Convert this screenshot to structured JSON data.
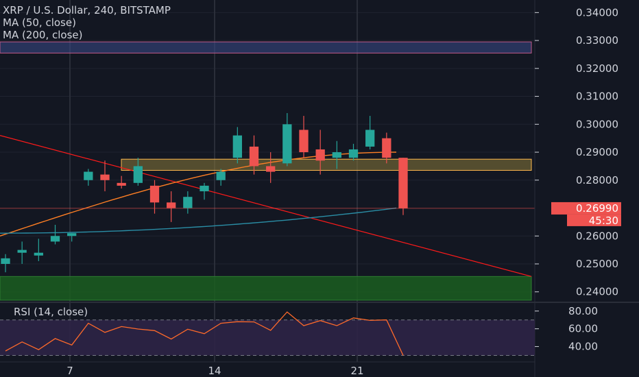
{
  "header": {
    "symbol_line": "XRP / U.S. Dollar, 240, BITSTAMP",
    "ma50_label": "MA (50, close)",
    "ma200_label": "MA (200, close)"
  },
  "rsi": {
    "label": "RSI (14, close)"
  },
  "price_badge": {
    "value": "0.26990",
    "timer": "45:30"
  },
  "colors": {
    "background": "#131722",
    "up": "#26a69a",
    "down": "#ef5350",
    "ma50": "#ff7f24",
    "ma200": "#2a8ea6",
    "trendline": "#ff1a1a",
    "resistance_zone": "#8a7a3a",
    "support_zone": "#1b5e20",
    "rsi_line": "#ff6a2a",
    "rsi_band": "#2e2446",
    "text": "#d1d4dc"
  },
  "chart_data": [
    {
      "type": "candlestick",
      "title": "XRP / U.S. Dollar, 240, BITSTAMP",
      "x_ticks": [
        "7",
        "14",
        "21"
      ],
      "y_ticks": [
        "0.24000",
        "0.25000",
        "0.26000",
        "0.28000",
        "0.29000",
        "0.30000",
        "0.31000",
        "0.32000",
        "0.33000",
        "0.34000"
      ],
      "ylim": [
        0.2365,
        0.3445
      ],
      "grid": true,
      "ohlc_approx": [
        [
          0.25,
          0.2535,
          0.247,
          0.252
        ],
        [
          0.254,
          0.258,
          0.25,
          0.255
        ],
        [
          0.253,
          0.259,
          0.251,
          0.254
        ],
        [
          0.258,
          0.264,
          0.257,
          0.26
        ],
        [
          0.26,
          0.261,
          0.258,
          0.261
        ],
        [
          0.28,
          0.284,
          0.278,
          0.283
        ],
        [
          0.282,
          0.287,
          0.276,
          0.28
        ],
        [
          0.279,
          0.2815,
          0.277,
          0.278
        ],
        [
          0.279,
          0.288,
          0.278,
          0.285
        ],
        [
          0.278,
          0.28,
          0.268,
          0.272
        ],
        [
          0.272,
          0.276,
          0.265,
          0.27
        ],
        [
          0.27,
          0.276,
          0.268,
          0.274
        ],
        [
          0.276,
          0.279,
          0.273,
          0.278
        ],
        [
          0.28,
          0.284,
          0.278,
          0.283
        ],
        [
          0.288,
          0.299,
          0.286,
          0.296
        ],
        [
          0.292,
          0.296,
          0.282,
          0.285
        ],
        [
          0.285,
          0.29,
          0.279,
          0.283
        ],
        [
          0.286,
          0.304,
          0.285,
          0.3
        ],
        [
          0.298,
          0.303,
          0.288,
          0.29
        ],
        [
          0.291,
          0.298,
          0.282,
          0.287
        ],
        [
          0.288,
          0.294,
          0.284,
          0.29
        ],
        [
          0.288,
          0.293,
          0.287,
          0.291
        ],
        [
          0.292,
          0.303,
          0.291,
          0.298
        ],
        [
          0.295,
          0.297,
          0.286,
          0.288
        ],
        [
          0.288,
          0.288,
          0.2675,
          0.2699
        ]
      ],
      "lines": [
        {
          "name": "MA (50, close)",
          "from": 0.26,
          "to": 0.29
        },
        {
          "name": "MA (200, close)",
          "from": 0.261,
          "to": 0.27
        }
      ],
      "trendline": {
        "from": 0.296,
        "to": 0.2455
      },
      "zones": [
        {
          "name": "resistance",
          "low": 0.2835,
          "high": 0.2875
        },
        {
          "name": "support",
          "low": 0.237,
          "high": 0.2455
        },
        {
          "name": "top band",
          "low": 0.3255,
          "high": 0.3295
        }
      ],
      "last_price": 0.2699
    },
    {
      "type": "line",
      "title": "RSI (14, close)",
      "y_ticks": [
        "40.00",
        "60.00",
        "80.00"
      ],
      "ylim": [
        25,
        86
      ],
      "bands": [
        30,
        70
      ],
      "last_value": 30
    }
  ]
}
